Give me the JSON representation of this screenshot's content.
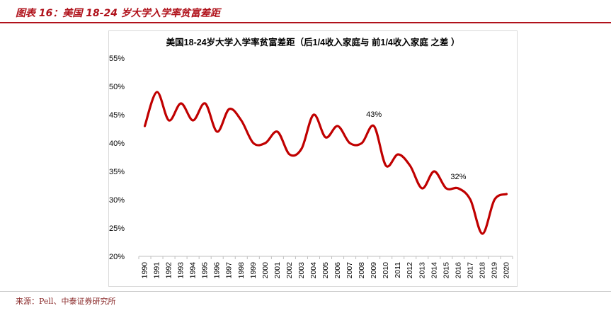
{
  "header": {
    "title": "图表 16：美国 18-24 岁大学入学率贫富差距"
  },
  "footer": {
    "source": "来源：Pell、中泰证券研究所"
  },
  "colors": {
    "accent": "#b0121b",
    "line": "#c00000",
    "grid": "#d9d9d9"
  },
  "chart_data": {
    "type": "line",
    "title": "美国18-24岁大学入学率贫富差距（后1/4收入家庭与 前1/4收入家庭 之差 ）",
    "xlabel": "",
    "ylabel": "",
    "x": [
      "1990",
      "1991",
      "1992",
      "1993",
      "1994",
      "1995",
      "1996",
      "1997",
      "1998",
      "1999",
      "2000",
      "2001",
      "2002",
      "2003",
      "2004",
      "2005",
      "2006",
      "2007",
      "2008",
      "2009",
      "2010",
      "2011",
      "2012",
      "2013",
      "2014",
      "2015",
      "2016",
      "2017",
      "2018",
      "2019",
      "2020"
    ],
    "yticks": [
      "20%",
      "25%",
      "30%",
      "35%",
      "40%",
      "45%",
      "50%",
      "55%"
    ],
    "ylim": [
      0.2,
      0.55
    ],
    "grid": false,
    "legend": "none",
    "series": [
      {
        "values": [
          0.43,
          0.49,
          0.44,
          0.47,
          0.44,
          0.47,
          0.42,
          0.46,
          0.44,
          0.4,
          0.4,
          0.42,
          0.38,
          0.39,
          0.45,
          0.41,
          0.43,
          0.4,
          0.4,
          0.43,
          0.36,
          0.38,
          0.36,
          0.32,
          0.35,
          0.32,
          0.32,
          0.3,
          0.24,
          0.3,
          0.31
        ]
      }
    ],
    "annotations": [
      {
        "x": "2009",
        "text": "43%"
      },
      {
        "x": "2016",
        "text": "32%"
      }
    ]
  }
}
